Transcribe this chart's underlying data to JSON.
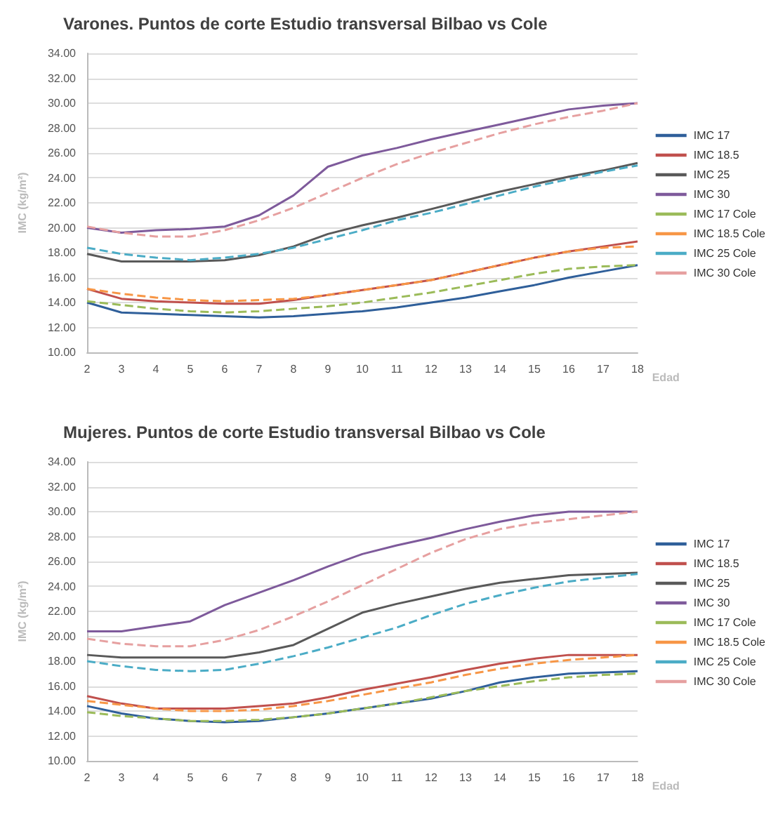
{
  "chart_data": [
    {
      "type": "line",
      "title": "Varones. Puntos de corte Estudio transversal Bilbao vs Cole",
      "xlabel": "Edad",
      "ylabel": "IMC (kg/m²)",
      "categories": [
        "2",
        "3",
        "4",
        "5",
        "6",
        "7",
        "8",
        "9",
        "10",
        "11",
        "12",
        "13",
        "14",
        "15",
        "16",
        "17",
        "18"
      ],
      "ylim": [
        10,
        34
      ],
      "yticks": [
        {
          "value": 10,
          "label": "10.00"
        },
        {
          "value": 12,
          "label": "12.00"
        },
        {
          "value": 14,
          "label": "14.00"
        },
        {
          "value": 16,
          "label": "16.00"
        },
        {
          "value": 18,
          "label": "18.00"
        },
        {
          "value": 20,
          "label": "20.00"
        },
        {
          "value": 22,
          "label": "22.00"
        },
        {
          "value": 24,
          "label": "24.00"
        },
        {
          "value": 26,
          "label": "26.00"
        },
        {
          "value": 28,
          "label": "28.00"
        },
        {
          "value": 30,
          "label": "30.00"
        },
        {
          "value": 32,
          "label": "32.00"
        },
        {
          "value": 34,
          "label": "34.00"
        }
      ],
      "grid": "y",
      "legend": "right",
      "marker": "none",
      "series": [
        {
          "name": "IMC 17",
          "color": "#2f5f9a",
          "line_style": "solid",
          "values": [
            14.0,
            13.2,
            13.1,
            13.0,
            12.9,
            12.8,
            12.9,
            13.1,
            13.3,
            13.6,
            14.0,
            14.4,
            14.9,
            15.4,
            16.0,
            16.5,
            17.0
          ]
        },
        {
          "name": "IMC 18.5",
          "color": "#c0504d",
          "line_style": "solid",
          "values": [
            15.1,
            14.3,
            14.1,
            14.0,
            13.9,
            13.9,
            14.2,
            14.6,
            15.0,
            15.4,
            15.8,
            16.4,
            17.0,
            17.6,
            18.1,
            18.5,
            18.9
          ]
        },
        {
          "name": "IMC 25",
          "color": "#595959",
          "line_style": "solid",
          "values": [
            17.9,
            17.3,
            17.3,
            17.3,
            17.4,
            17.8,
            18.5,
            19.5,
            20.2,
            20.8,
            21.5,
            22.2,
            22.9,
            23.5,
            24.1,
            24.6,
            25.2
          ]
        },
        {
          "name": "IMC 30",
          "color": "#7e5a9b",
          "line_style": "solid",
          "values": [
            20.0,
            19.6,
            19.8,
            19.9,
            20.1,
            21.0,
            22.6,
            24.9,
            25.8,
            26.4,
            27.1,
            27.7,
            28.3,
            28.9,
            29.5,
            29.8,
            30.0
          ]
        },
        {
          "name": "IMC 17 Cole",
          "color": "#9bbb59",
          "line_style": "dashed",
          "values": [
            14.1,
            13.8,
            13.5,
            13.3,
            13.2,
            13.3,
            13.5,
            13.7,
            14.0,
            14.4,
            14.8,
            15.3,
            15.8,
            16.3,
            16.7,
            16.9,
            17.0
          ]
        },
        {
          "name": "IMC 18.5 Cole",
          "color": "#f79646",
          "line_style": "dashed",
          "values": [
            15.1,
            14.7,
            14.4,
            14.2,
            14.1,
            14.2,
            14.3,
            14.6,
            15.0,
            15.4,
            15.8,
            16.4,
            17.0,
            17.6,
            18.1,
            18.4,
            18.5
          ]
        },
        {
          "name": "IMC 25 Cole",
          "color": "#4bacc6",
          "line_style": "dashed",
          "values": [
            18.4,
            17.9,
            17.6,
            17.4,
            17.6,
            17.9,
            18.4,
            19.1,
            19.8,
            20.6,
            21.2,
            21.9,
            22.6,
            23.3,
            23.9,
            24.5,
            25.0
          ]
        },
        {
          "name": "IMC 30 Cole",
          "color": "#e6a0a0",
          "line_style": "dashed",
          "values": [
            20.1,
            19.6,
            19.3,
            19.3,
            19.8,
            20.6,
            21.6,
            22.8,
            24.0,
            25.1,
            26.0,
            26.8,
            27.6,
            28.3,
            28.9,
            29.4,
            30.0
          ]
        }
      ]
    },
    {
      "type": "line",
      "title": "Mujeres. Puntos de corte Estudio transversal Bilbao vs Cole",
      "xlabel": "Edad",
      "ylabel": "IMC (kg/m²)",
      "categories": [
        "2",
        "3",
        "4",
        "5",
        "6",
        "7",
        "8",
        "9",
        "10",
        "11",
        "12",
        "13",
        "14",
        "15",
        "16",
        "17",
        "18"
      ],
      "ylim": [
        10,
        34
      ],
      "yticks": [
        {
          "value": 10,
          "label": "10.00"
        },
        {
          "value": 12,
          "label": "12.00"
        },
        {
          "value": 14,
          "label": "14.00"
        },
        {
          "value": 16,
          "label": "16.00"
        },
        {
          "value": 18,
          "label": "18.00"
        },
        {
          "value": 20,
          "label": "20.00"
        },
        {
          "value": 22,
          "label": "22.00"
        },
        {
          "value": 24,
          "label": "24.00"
        },
        {
          "value": 26,
          "label": "26.00"
        },
        {
          "value": 28,
          "label": "28.00"
        },
        {
          "value": 30,
          "label": "30.00"
        },
        {
          "value": 32,
          "label": "32.00"
        },
        {
          "value": 34,
          "label": "34.00"
        }
      ],
      "grid": "y",
      "legend": "right",
      "marker": "none",
      "series": [
        {
          "name": "IMC 17",
          "color": "#2f5f9a",
          "line_style": "solid",
          "values": [
            14.4,
            13.8,
            13.4,
            13.2,
            13.1,
            13.2,
            13.5,
            13.8,
            14.2,
            14.6,
            15.0,
            15.6,
            16.3,
            16.7,
            17.0,
            17.1,
            17.2
          ]
        },
        {
          "name": "IMC 18.5",
          "color": "#c0504d",
          "line_style": "solid",
          "values": [
            15.2,
            14.6,
            14.2,
            14.2,
            14.2,
            14.4,
            14.6,
            15.1,
            15.7,
            16.2,
            16.7,
            17.3,
            17.8,
            18.2,
            18.5,
            18.5,
            18.5
          ]
        },
        {
          "name": "IMC 25",
          "color": "#595959",
          "line_style": "solid",
          "values": [
            18.5,
            18.3,
            18.3,
            18.3,
            18.3,
            18.7,
            19.3,
            20.6,
            21.9,
            22.6,
            23.2,
            23.8,
            24.3,
            24.6,
            24.9,
            25.0,
            25.1
          ]
        },
        {
          "name": "IMC 30",
          "color": "#7e5a9b",
          "line_style": "solid",
          "values": [
            20.4,
            20.4,
            20.8,
            21.2,
            22.5,
            23.5,
            24.5,
            25.6,
            26.6,
            27.3,
            27.9,
            28.6,
            29.2,
            29.7,
            30.0,
            30.0,
            30.0
          ]
        },
        {
          "name": "IMC 17 Cole",
          "color": "#9bbb59",
          "line_style": "dashed",
          "values": [
            13.9,
            13.6,
            13.4,
            13.2,
            13.2,
            13.3,
            13.5,
            13.8,
            14.2,
            14.6,
            15.1,
            15.6,
            16.0,
            16.4,
            16.7,
            16.9,
            17.0
          ]
        },
        {
          "name": "IMC 18.5 Cole",
          "color": "#f79646",
          "line_style": "dashed",
          "values": [
            14.8,
            14.5,
            14.2,
            14.0,
            14.0,
            14.1,
            14.4,
            14.8,
            15.3,
            15.8,
            16.3,
            16.9,
            17.4,
            17.8,
            18.1,
            18.3,
            18.5
          ]
        },
        {
          "name": "IMC 25 Cole",
          "color": "#4bacc6",
          "line_style": "dashed",
          "values": [
            18.0,
            17.6,
            17.3,
            17.2,
            17.3,
            17.8,
            18.4,
            19.1,
            19.9,
            20.7,
            21.7,
            22.6,
            23.3,
            23.9,
            24.4,
            24.7,
            25.0
          ]
        },
        {
          "name": "IMC 30 Cole",
          "color": "#e6a0a0",
          "line_style": "dashed",
          "values": [
            19.8,
            19.4,
            19.2,
            19.2,
            19.7,
            20.5,
            21.6,
            22.8,
            24.1,
            25.4,
            26.7,
            27.8,
            28.6,
            29.1,
            29.4,
            29.7,
            30.0
          ]
        }
      ]
    }
  ]
}
